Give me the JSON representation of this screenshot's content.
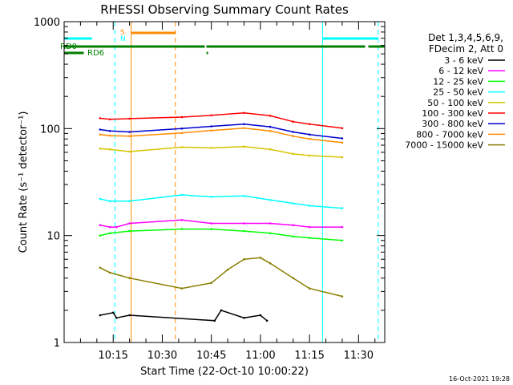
{
  "chart_data": {
    "type": "line",
    "title": "RHESSI Observing Summary Count Rates",
    "xlabel": "Start Time (22-Oct-10 10:00:22)",
    "ylabel": "Count Rate (s⁻¹ detector⁻¹)",
    "footer": "16-Oct-2021 19:28",
    "x_unit": "minutes after 10:00:22",
    "xlim": [
      0,
      98
    ],
    "ylim": [
      1,
      1000
    ],
    "y_scale": "log",
    "grid": false,
    "legend_position": "right",
    "x_ticks": [
      {
        "v": 15,
        "label": "10:15"
      },
      {
        "v": 30,
        "label": "10:30"
      },
      {
        "v": 45,
        "label": "10:45"
      },
      {
        "v": 60,
        "label": "11:00"
      },
      {
        "v": 75,
        "label": "11:15"
      },
      {
        "v": 90,
        "label": "11:30"
      }
    ],
    "y_ticks": [
      {
        "v": 1,
        "label": "1"
      },
      {
        "v": 10,
        "label": "10"
      },
      {
        "v": 100,
        "label": "100"
      },
      {
        "v": 1000,
        "label": "1000"
      }
    ],
    "legend_header": [
      "Det 1,3,4,5,6,9,",
      "FDecim 2, Att 0"
    ],
    "series": [
      {
        "name": "3 - 6 keV",
        "color": "#000000",
        "values": [
          [
            11,
            1.8
          ],
          [
            15,
            1.9
          ],
          [
            16,
            1.7
          ],
          [
            20,
            1.8
          ],
          [
            46,
            1.6
          ],
          [
            48,
            2.0
          ],
          [
            55,
            1.7
          ],
          [
            60,
            1.8
          ],
          [
            62,
            1.6
          ]
        ]
      },
      {
        "name": "6 - 12 keV",
        "color": "#ff00ff",
        "values": [
          [
            11,
            12.5
          ],
          [
            14,
            12
          ],
          [
            16,
            12
          ],
          [
            20,
            13
          ],
          [
            36,
            14
          ],
          [
            45,
            13
          ],
          [
            55,
            13
          ],
          [
            63,
            13
          ],
          [
            70,
            12.5
          ],
          [
            75,
            12
          ],
          [
            85,
            12
          ]
        ]
      },
      {
        "name": "12 - 25 keV",
        "color": "#00ff00",
        "values": [
          [
            11,
            10
          ],
          [
            14,
            10.5
          ],
          [
            20,
            11
          ],
          [
            36,
            11.5
          ],
          [
            45,
            11.5
          ],
          [
            55,
            11
          ],
          [
            63,
            10.5
          ],
          [
            70,
            9.8
          ],
          [
            75,
            9.5
          ],
          [
            85,
            9
          ]
        ]
      },
      {
        "name": "25 - 50 keV",
        "color": "#00ffff",
        "values": [
          [
            11,
            22
          ],
          [
            14,
            21
          ],
          [
            20,
            21
          ],
          [
            36,
            24
          ],
          [
            45,
            23
          ],
          [
            55,
            23.5
          ],
          [
            63,
            21.5
          ],
          [
            70,
            20
          ],
          [
            75,
            19
          ],
          [
            85,
            18
          ]
        ]
      },
      {
        "name": "50 - 100 keV",
        "color": "#d6c400",
        "values": [
          [
            11,
            65
          ],
          [
            14,
            64
          ],
          [
            20,
            61
          ],
          [
            36,
            67
          ],
          [
            45,
            66
          ],
          [
            55,
            68
          ],
          [
            63,
            64
          ],
          [
            70,
            58
          ],
          [
            75,
            56
          ],
          [
            85,
            54
          ]
        ]
      },
      {
        "name": "100 - 300 keV",
        "color": "#ff0000",
        "values": [
          [
            11,
            125
          ],
          [
            14,
            122
          ],
          [
            20,
            124
          ],
          [
            36,
            128
          ],
          [
            45,
            133
          ],
          [
            55,
            140
          ],
          [
            63,
            132
          ],
          [
            70,
            116
          ],
          [
            75,
            110
          ],
          [
            85,
            101
          ]
        ]
      },
      {
        "name": "300 - 800 keV",
        "color": "#0000cc",
        "values": [
          [
            11,
            98
          ],
          [
            14,
            95
          ],
          [
            20,
            93
          ],
          [
            36,
            100
          ],
          [
            45,
            105
          ],
          [
            55,
            110
          ],
          [
            63,
            104
          ],
          [
            70,
            93
          ],
          [
            75,
            88
          ],
          [
            85,
            81
          ]
        ]
      },
      {
        "name": "800 - 7000 keV",
        "color": "#ff8c00",
        "values": [
          [
            11,
            88
          ],
          [
            14,
            86
          ],
          [
            20,
            85
          ],
          [
            36,
            91
          ],
          [
            45,
            96
          ],
          [
            55,
            101
          ],
          [
            63,
            95
          ],
          [
            70,
            85
          ],
          [
            75,
            80
          ],
          [
            85,
            74
          ]
        ]
      },
      {
        "name": "7000 - 15000 keV",
        "color": "#8b7d00",
        "values": [
          [
            11,
            5
          ],
          [
            14,
            4.5
          ],
          [
            20,
            4
          ],
          [
            36,
            3.2
          ],
          [
            45,
            3.6
          ],
          [
            50,
            4.8
          ],
          [
            55,
            6
          ],
          [
            60,
            6.2
          ],
          [
            63,
            5.5
          ],
          [
            70,
            4
          ],
          [
            75,
            3.2
          ],
          [
            85,
            2.7
          ]
        ]
      }
    ],
    "status_bars": [
      {
        "label": "",
        "color": "#00ffff",
        "segments": [
          [
            0,
            8.5
          ],
          [
            79,
            96
          ]
        ]
      },
      {
        "label": "",
        "color": "#ff8c00",
        "segments": [
          [
            20.5,
            34
          ]
        ]
      },
      {
        "label": "RD0",
        "color": "#008000",
        "segments": [
          [
            0,
            43
          ],
          [
            43.5,
            92
          ],
          [
            93,
            98
          ]
        ]
      },
      {
        "label": "RD6",
        "color": "#008000",
        "segments": [
          [
            0,
            6
          ],
          [
            43.5,
            44
          ]
        ]
      }
    ],
    "flags": [
      {
        "label": "S",
        "color": "#ff8c00"
      },
      {
        "label": "N",
        "color": "#00ffff"
      }
    ],
    "vlines": [
      {
        "x": 0,
        "color": "#00ffff",
        "style": "solid"
      },
      {
        "x": 15.5,
        "color": "#00ffff",
        "style": "dashed"
      },
      {
        "x": 20.5,
        "color": "#ff8c00",
        "style": "solid"
      },
      {
        "x": 34,
        "color": "#ff8c00",
        "style": "dashed"
      },
      {
        "x": 79,
        "color": "#00ffff",
        "style": "solid"
      },
      {
        "x": 96,
        "color": "#00ffff",
        "style": "dashed"
      }
    ]
  }
}
